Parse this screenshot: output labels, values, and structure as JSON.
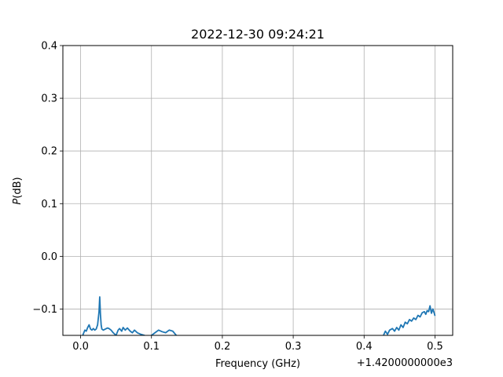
{
  "chart_data": {
    "type": "line",
    "title": "2022-12-30 09:24:21",
    "xlabel": "Frequency (GHz)",
    "ylabel_italic": "P",
    "ylabel_rest": "(dB)",
    "x_offset_label": "+1.4200000000e3",
    "xlim": [
      -0.025,
      0.525
    ],
    "ylim": [
      -0.15,
      0.4
    ],
    "xticks": [
      0.0,
      0.1,
      0.2,
      0.3,
      0.4,
      0.5
    ],
    "xtick_labels": [
      "0.0",
      "0.1",
      "0.2",
      "0.3",
      "0.4",
      "0.5"
    ],
    "yticks": [
      -0.1,
      0.0,
      0.1,
      0.2,
      0.3,
      0.4
    ],
    "ytick_labels": [
      "−0.1",
      "0.0",
      "0.1",
      "0.2",
      "0.3",
      "0.4"
    ],
    "grid": true,
    "series_color": "#1f77b4",
    "series": [
      {
        "x": [
          0.0,
          0.003,
          0.006,
          0.008,
          0.01,
          0.012,
          0.014,
          0.016,
          0.018,
          0.02,
          0.022,
          0.024,
          0.026,
          0.027,
          0.028,
          0.029,
          0.03,
          0.032,
          0.035,
          0.038,
          0.04,
          0.043,
          0.046,
          0.05,
          0.053,
          0.055,
          0.058,
          0.06,
          0.063,
          0.066,
          0.07,
          0.073,
          0.076,
          0.08,
          0.085,
          0.09,
          0.095,
          0.1,
          0.105,
          0.11,
          0.115,
          0.12,
          0.125,
          0.13,
          0.135,
          0.14,
          0.145,
          0.15
        ],
        "y": [
          -0.155,
          -0.15,
          -0.14,
          -0.142,
          -0.135,
          -0.13,
          -0.138,
          -0.14,
          -0.137,
          -0.14,
          -0.138,
          -0.13,
          -0.105,
          -0.077,
          -0.11,
          -0.13,
          -0.138,
          -0.14,
          -0.138,
          -0.136,
          -0.137,
          -0.14,
          -0.145,
          -0.15,
          -0.14,
          -0.137,
          -0.142,
          -0.135,
          -0.14,
          -0.136,
          -0.142,
          -0.145,
          -0.14,
          -0.145,
          -0.148,
          -0.15,
          -0.155,
          -0.15,
          -0.145,
          -0.14,
          -0.143,
          -0.145,
          -0.14,
          -0.142,
          -0.15,
          -0.155,
          -0.155,
          -0.16
        ]
      },
      {
        "x": [
          0.425,
          0.428,
          0.43,
          0.433,
          0.436,
          0.44,
          0.443,
          0.446,
          0.449,
          0.452,
          0.455,
          0.458,
          0.461,
          0.464,
          0.467,
          0.47,
          0.473,
          0.476,
          0.479,
          0.482,
          0.485,
          0.487,
          0.489,
          0.491,
          0.493,
          0.495,
          0.497,
          0.499,
          0.5
        ],
        "y": [
          -0.16,
          -0.148,
          -0.142,
          -0.148,
          -0.14,
          -0.137,
          -0.142,
          -0.135,
          -0.14,
          -0.13,
          -0.135,
          -0.125,
          -0.128,
          -0.12,
          -0.123,
          -0.117,
          -0.12,
          -0.112,
          -0.115,
          -0.107,
          -0.105,
          -0.11,
          -0.103,
          -0.105,
          -0.094,
          -0.108,
          -0.1,
          -0.108,
          -0.113
        ]
      }
    ]
  }
}
